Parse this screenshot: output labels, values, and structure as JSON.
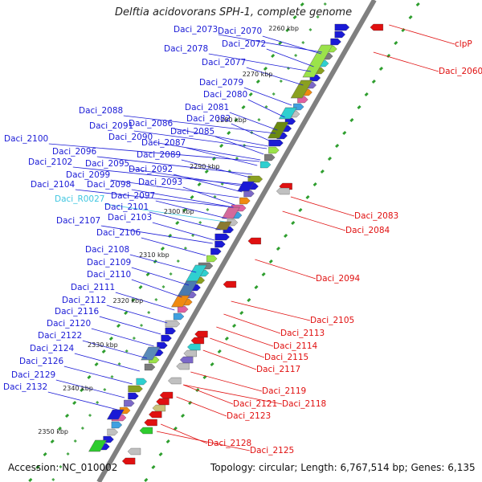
{
  "title": "Delftia acidovorans SPH-1, complete genome",
  "accession": "Accession: NC_010002",
  "topology": "Topology: circular; Length: 6,767,514 bp; Genes: 6,135",
  "colors": {
    "backbone": "#808080",
    "forward_label": "#1a1ad6",
    "reverse_label": "#e01010",
    "rna_label": "#3fc6e0",
    "forward_gene": "#1a1ad6",
    "reverse_gene": "#e01010"
  },
  "kbp_ticks": [
    "2260 kbp",
    "2270 kbp",
    "2280 kbp",
    "2290 kbp",
    "2300 kbp",
    "2310 kbp",
    "2320 kbp",
    "2330 kbp",
    "2340 kbp",
    "2350 kbp"
  ],
  "left_labels": [
    "Daci_2073",
    "Daci_2070",
    "Daci_2072",
    "Daci_2078",
    "Daci_2077",
    "Daci_2079",
    "Daci_2080",
    "Daci_2081",
    "Daci_2082",
    "Daci_2088",
    "Daci_2086",
    "Daci_2091",
    "Daci_2085",
    "Daci_2090",
    "Daci_2087",
    "Daci_2100",
    "Daci_2096",
    "Daci_2089",
    "Daci_2102",
    "Daci_2095",
    "Daci_2092",
    "Daci_2099",
    "Daci_2093",
    "Daci_2104",
    "Daci_2098",
    "Daci_2097",
    "Daci_R0027",
    "Daci_2101",
    "Daci_2107",
    "Daci_2103",
    "Daci_2106",
    "Daci_2108",
    "Daci_2109",
    "Daci_2110",
    "Daci_2111",
    "Daci_2112",
    "Daci_2116",
    "Daci_2120",
    "Daci_2122",
    "Daci_2124",
    "Daci_2126",
    "Daci_2129",
    "Daci_2132"
  ],
  "right_labels": [
    "clpP",
    "Daci_2060",
    "Daci_2083",
    "Daci_2084",
    "Daci_2094",
    "Daci_2105",
    "Daci_2113",
    "Daci_2114",
    "Daci_2115",
    "Daci_2117",
    "Daci_2119",
    "Daci_2118",
    "Daci_2121",
    "Daci_2123",
    "Daci_2128",
    "Daci_2125"
  ]
}
